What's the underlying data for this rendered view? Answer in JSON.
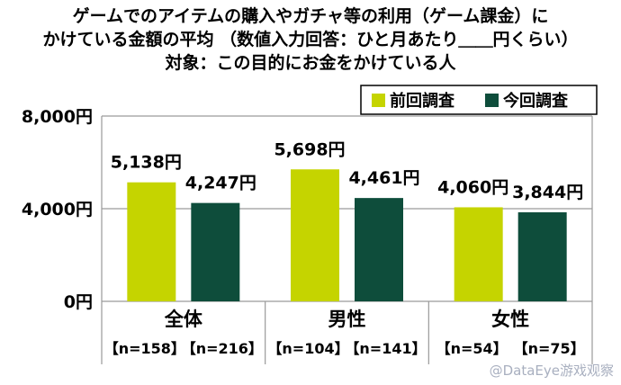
{
  "title": {
    "line1": "ゲームでのアイテムの購入やガチャ等の利用（ゲーム課金）に",
    "line2": "かけている金額の平均 （数値入力回答：ひと月あたり＿＿円くらい）",
    "line3": "対象：この目的にお金をかけている人"
  },
  "colors": {
    "previous": "#c5d400",
    "current": "#0e4d3b",
    "grid": "#9a9a9a"
  },
  "watermark": "@DataEye游戏观察",
  "chart_data": {
    "type": "bar",
    "title": "ゲームでのアイテムの購入やガチャ等の利用（ゲーム課金）にかけている金額の平均 （数値入力回答：ひと月あたり＿＿円くらい）",
    "subtitle": "対象：この目的にお金をかけている人",
    "categories": [
      "全体",
      "男性",
      "女性"
    ],
    "series": [
      {
        "name": "前回調査",
        "values": [
          5138,
          5698,
          4060
        ],
        "labels": [
          "5,138円",
          "5,698円",
          "4,060円"
        ],
        "n_labels": [
          "【n=158】",
          "【n=104】",
          "【n=54】"
        ]
      },
      {
        "name": "今回調査",
        "values": [
          4247,
          4461,
          3844
        ],
        "labels": [
          "4,247円",
          "4,461円",
          "3,844円"
        ],
        "n_labels": [
          "【n=216】",
          "【n=141】",
          "【n=75】"
        ]
      }
    ],
    "ylim": [
      0,
      8000
    ],
    "yticks": [
      0,
      4000,
      8000
    ],
    "ytick_labels": [
      "0円",
      "4,000円",
      "8,000円"
    ],
    "legend_position": "top-right",
    "grid": true
  }
}
